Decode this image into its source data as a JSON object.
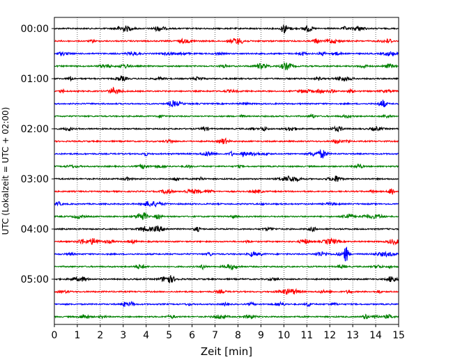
{
  "chart_data": {
    "type": "line",
    "subtype": "seismogram-helicorder",
    "xlabel": "Zeit  [min]",
    "ylabel": "UTC (Lokalzeit = UTC + 02:00)",
    "xlim": [
      0,
      15
    ],
    "x_ticks": [
      "0",
      "1",
      "2",
      "3",
      "4",
      "5",
      "6",
      "7",
      "8",
      "9",
      "10",
      "11",
      "12",
      "13",
      "14",
      "15"
    ],
    "y_ticks": [
      "00:00",
      "01:00",
      "02:00",
      "03:00",
      "04:00",
      "05:00"
    ],
    "grid": "vertical dotted at each minute",
    "trace_interval_min": 15,
    "trace_count": 24,
    "trace_colors": [
      "#000000",
      "#ff0000",
      "#0000ff",
      "#008000"
    ],
    "notable_events": [
      {
        "row": 0,
        "minute": 10.0,
        "amplitude": "medium"
      },
      {
        "row": 18,
        "minute": 12.7,
        "amplitude": "large"
      },
      {
        "row": 13,
        "minute": 14.7,
        "amplitude": "medium"
      }
    ]
  }
}
